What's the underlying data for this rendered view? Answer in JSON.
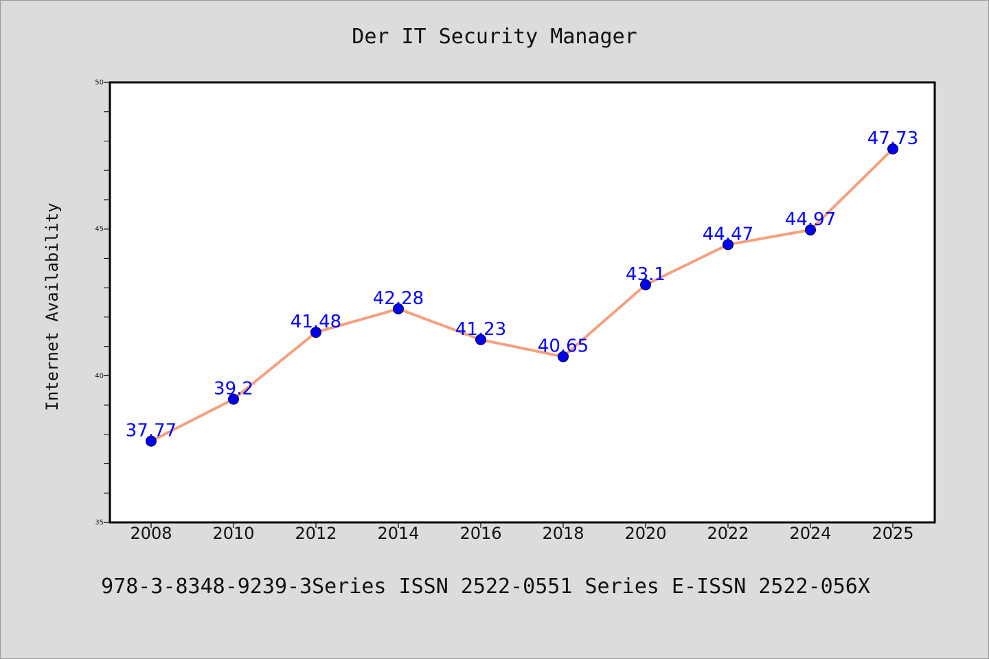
{
  "title": "Der IT Security Manager",
  "footer": "978-3-8348-9239-3Series ISSN 2522-0551 Series E-ISSN 2522-056X",
  "chart_data": {
    "type": "line",
    "title": "Der IT Security Manager",
    "xlabel": "",
    "ylabel": "Internet Availability",
    "categories": [
      "2008",
      "2010",
      "2012",
      "2014",
      "2016",
      "2018",
      "2020",
      "2022",
      "2024",
      "2025"
    ],
    "series": [
      {
        "values": [
          37.77,
          39.2,
          41.48,
          42.28,
          41.23,
          40.65,
          43.1,
          44.47,
          44.97,
          47.73
        ],
        "labels": [
          "37.77",
          "39.2",
          "41.48",
          "42.28",
          "41.23",
          "40.65",
          "43.1",
          "44.47",
          "44.97",
          "47.73"
        ],
        "line_color": "#f4a07e",
        "marker_color": "#0000ee"
      }
    ],
    "ylim": [
      35,
      50
    ],
    "yticks": [
      35,
      40,
      45,
      50
    ],
    "ytick_labels": [
      "35",
      "40",
      "45",
      "50"
    ],
    "grid": false,
    "legend": "none",
    "background": "#ffffff",
    "label_color": "#0000ff"
  }
}
